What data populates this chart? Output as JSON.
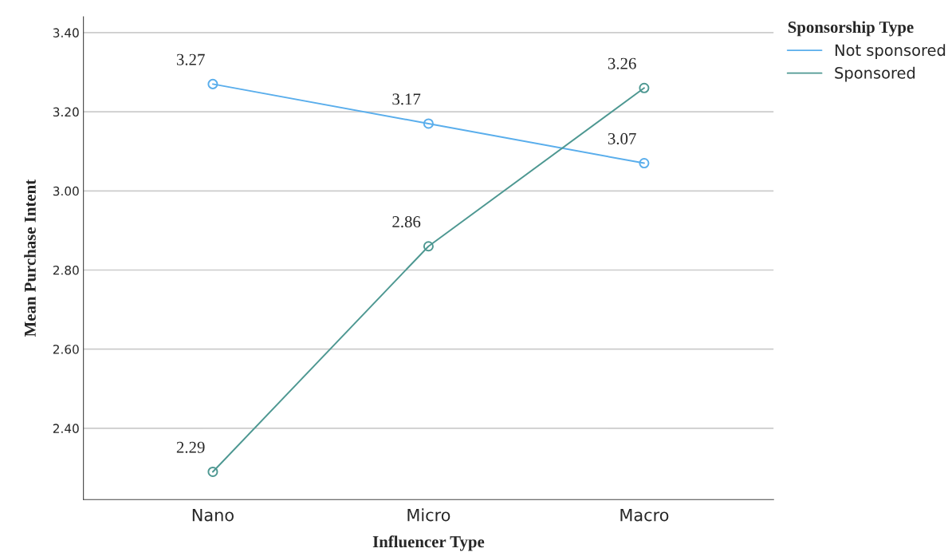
{
  "chart_data": {
    "type": "line",
    "xlabel": "Influencer Type",
    "ylabel": "Mean Purchase Intent",
    "legend_title": "Sponsorship Type",
    "categories": [
      "Nano",
      "Micro",
      "Macro"
    ],
    "series": [
      {
        "name": "Not sponsored",
        "color": "#5aaeec",
        "values": [
          3.27,
          3.17,
          3.07
        ]
      },
      {
        "name": "Sponsored",
        "color": "#4e9892",
        "values": [
          2.29,
          2.86,
          3.26
        ]
      }
    ],
    "ylim": [
      2.22,
      3.44
    ],
    "yticks": [
      {
        "value": 2.4,
        "label": "2.40"
      },
      {
        "value": 2.6,
        "label": "2.60"
      },
      {
        "value": 2.8,
        "label": "2.80"
      },
      {
        "value": 3.0,
        "label": "3.00"
      },
      {
        "value": 3.2,
        "label": "3.20"
      },
      {
        "value": 3.4,
        "label": "3.40"
      }
    ],
    "grid": "y",
    "legend": "top right",
    "marker": "circle",
    "line_style": "solid",
    "data_labels": true
  }
}
